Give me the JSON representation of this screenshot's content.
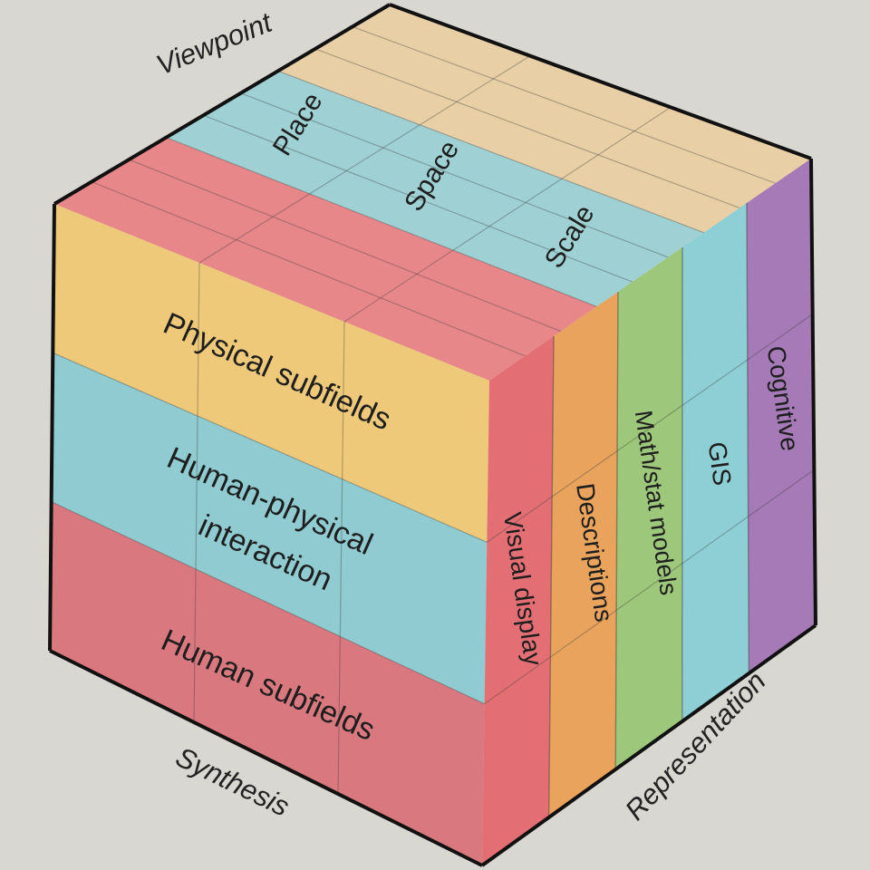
{
  "axes": {
    "viewpoint": "Viewpoint",
    "synthesis": "Synthesis",
    "representation": "Representation"
  },
  "viewpoint_bands": [
    {
      "label": "Place",
      "color": "#e8878a"
    },
    {
      "label": "Space",
      "color": "#9fd0d3"
    },
    {
      "label": "Scale",
      "color": "#e8cfa6"
    }
  ],
  "synthesis_bands": [
    {
      "label": "Physical subfields",
      "color": "#efc97a"
    },
    {
      "label": "Human-physical interaction",
      "label_lines": [
        "Human-physical",
        "interaction"
      ],
      "color": "#8fcbd0"
    },
    {
      "label": "Human subfields",
      "color": "#d9787f"
    }
  ],
  "representation_bands": [
    {
      "label": "Visual display",
      "color": "#e36f74"
    },
    {
      "label": "Descriptions",
      "color": "#e9a35c"
    },
    {
      "label": "Math/stat models",
      "color": "#9dc77a"
    },
    {
      "label": "GIS",
      "color": "#8ecfd6"
    },
    {
      "label": "Cognitive",
      "color": "#a57ab6"
    }
  ]
}
